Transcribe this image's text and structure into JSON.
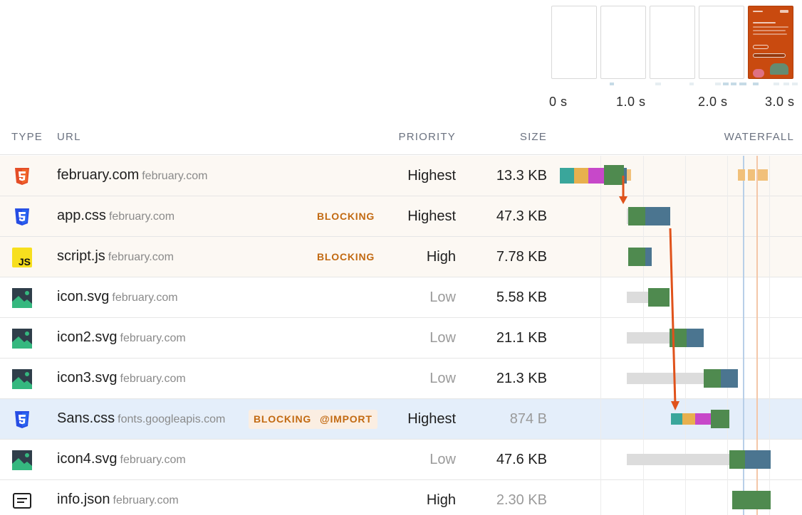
{
  "filmstrip": {
    "frames": [
      "blank",
      "blank",
      "blank",
      "blank",
      "loaded"
    ],
    "time_labels": [
      "0 s",
      "1.0 s",
      "2.0 s",
      "3.0 s"
    ]
  },
  "columns": {
    "type": "TYPE",
    "url": "URL",
    "priority": "PRIORITY",
    "size": "SIZE",
    "waterfall": "WATERFALL"
  },
  "requests": [
    {
      "type": "html",
      "name": "february.com",
      "domain": "february.com",
      "badges": [],
      "priority": "Highest",
      "priority_low": false,
      "size": "13.3 KB",
      "size_dim": false,
      "row_style": "warm"
    },
    {
      "type": "css",
      "name": "app.css",
      "domain": "february.com",
      "badges": [
        "BLOCKING"
      ],
      "priority": "Highest",
      "priority_low": false,
      "size": "47.3 KB",
      "size_dim": false,
      "row_style": "warm"
    },
    {
      "type": "js",
      "name": "script.js",
      "domain": "february.com",
      "badges": [
        "BLOCKING"
      ],
      "priority": "High",
      "priority_low": false,
      "size": "7.78 KB",
      "size_dim": false,
      "row_style": "warm"
    },
    {
      "type": "image",
      "name": "icon.svg",
      "domain": "february.com",
      "badges": [],
      "priority": "Low",
      "priority_low": true,
      "size": "5.58 KB",
      "size_dim": false,
      "row_style": "plain"
    },
    {
      "type": "image",
      "name": "icon2.svg",
      "domain": "february.com",
      "badges": [],
      "priority": "Low",
      "priority_low": true,
      "size": "21.1 KB",
      "size_dim": false,
      "row_style": "plain"
    },
    {
      "type": "image",
      "name": "icon3.svg",
      "domain": "february.com",
      "badges": [],
      "priority": "Low",
      "priority_low": true,
      "size": "21.3 KB",
      "size_dim": false,
      "row_style": "plain"
    },
    {
      "type": "css",
      "name": "Sans.css",
      "domain": "fonts.googleapis.com",
      "badges": [
        "BLOCKING",
        "@IMPORT"
      ],
      "priority": "Highest",
      "priority_low": false,
      "size": "874 B",
      "size_dim": true,
      "row_style": "highlight"
    },
    {
      "type": "image",
      "name": "icon4.svg",
      "domain": "february.com",
      "badges": [],
      "priority": "Low",
      "priority_low": true,
      "size": "47.6 KB",
      "size_dim": false,
      "row_style": "plain"
    },
    {
      "type": "json",
      "name": "info.json",
      "domain": "february.com",
      "badges": [],
      "priority": "High",
      "priority_low": false,
      "size": "2.30 KB",
      "size_dim": true,
      "row_style": "plain"
    }
  ],
  "colors": {
    "dns": "#3aa69b",
    "connect": "#e8b04e",
    "ssl": "#c748c9",
    "wait": "#4f8a4f",
    "download": "#4b7590",
    "queue": "#dcdcdc",
    "arrow": "#e0521b",
    "fcp_line": "#b8cfe8",
    "lcp_line": "#f4c7a8"
  }
}
